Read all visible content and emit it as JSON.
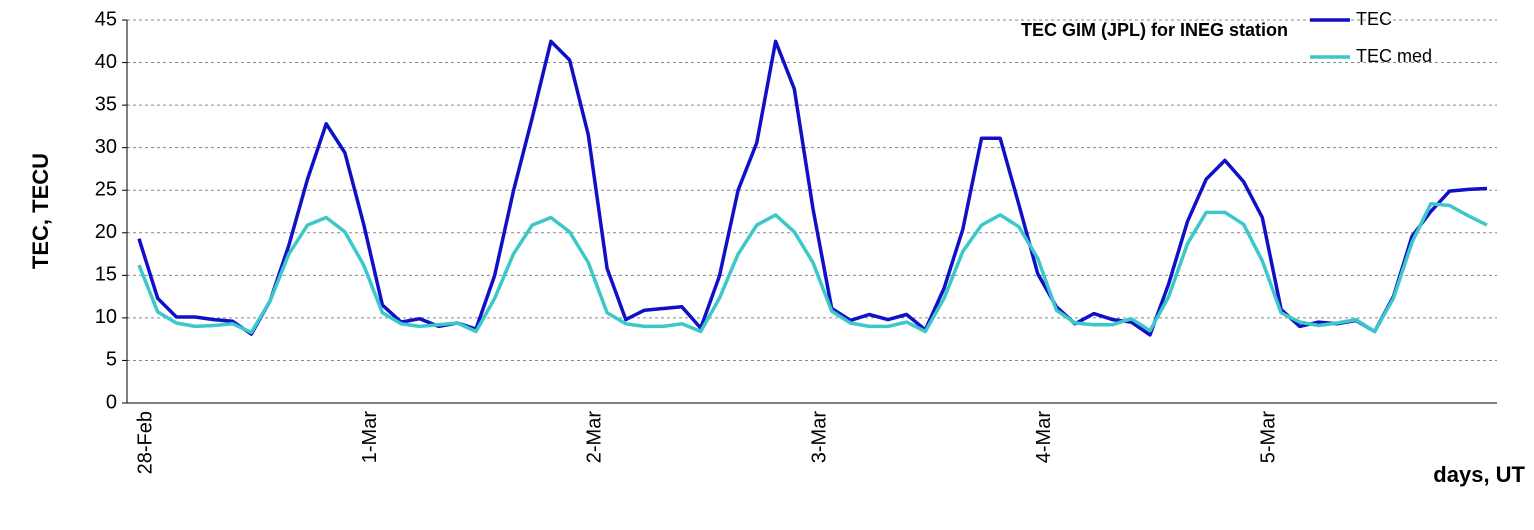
{
  "chart_data": {
    "type": "line",
    "title": "TEC GIM (JPL) for INEG station",
    "y_label": "TEC, TECU",
    "x_label": "days, UT",
    "categories": [
      "28-Feb",
      null,
      null,
      null,
      null,
      null,
      null,
      null,
      null,
      null,
      null,
      null,
      "1-Mar",
      null,
      null,
      null,
      null,
      null,
      null,
      null,
      null,
      null,
      null,
      null,
      "2-Mar",
      null,
      null,
      null,
      null,
      null,
      null,
      null,
      null,
      null,
      null,
      null,
      "3-Mar",
      null,
      null,
      null,
      null,
      null,
      null,
      null,
      null,
      null,
      null,
      null,
      "4-Mar",
      null,
      null,
      null,
      null,
      null,
      null,
      null,
      null,
      null,
      null,
      null,
      "5-Mar",
      null,
      null,
      null,
      null,
      null,
      null,
      null,
      null,
      null,
      null,
      null,
      null
    ],
    "series": [
      {
        "name": "TEC",
        "color": "#1010c8",
        "values": [
          19.3,
          12.3,
          10.1,
          10.1,
          9.8,
          9.6,
          8.1,
          12.0,
          18.5,
          26.3,
          32.8,
          29.4,
          21.0,
          11.5,
          9.5,
          9.9,
          9.0,
          9.4,
          8.7,
          15.0,
          24.9,
          33.5,
          42.5,
          40.3,
          31.5,
          15.8,
          9.8,
          10.9,
          11.1,
          11.3,
          8.8,
          14.9,
          25.0,
          30.6,
          42.5,
          36.9,
          22.8,
          11.1,
          9.7,
          10.4,
          9.8,
          10.4,
          8.6,
          13.5,
          20.4,
          31.1,
          31.1,
          23.3,
          15.2,
          11.3,
          9.3,
          10.5,
          9.8,
          9.5,
          8.0,
          14.0,
          21.3,
          26.3,
          28.5,
          26.0,
          21.8,
          11.0,
          9.0,
          9.5,
          9.3,
          9.7,
          8.4,
          12.5,
          19.6,
          22.5,
          24.9,
          25.1,
          25.2
        ]
      },
      {
        "name": "TEC med",
        "color": "#3cc8c8",
        "values": [
          16.2,
          10.7,
          9.4,
          9.0,
          9.1,
          9.3,
          8.3,
          12.0,
          17.5,
          20.9,
          21.8,
          20.1,
          16.2,
          10.6,
          9.3,
          9.0,
          9.2,
          9.4,
          8.4,
          12.3,
          17.5,
          20.9,
          21.8,
          20.1,
          16.5,
          10.6,
          9.3,
          9.0,
          9.0,
          9.3,
          8.4,
          12.3,
          17.5,
          20.9,
          22.1,
          20.1,
          16.5,
          10.8,
          9.4,
          9.0,
          9.0,
          9.5,
          8.4,
          12.3,
          17.8,
          20.9,
          22.1,
          20.7,
          17.0,
          10.9,
          9.4,
          9.2,
          9.2,
          9.9,
          8.5,
          12.5,
          18.7,
          22.4,
          22.4,
          21.0,
          16.7,
          10.6,
          9.5,
          9.1,
          9.4,
          9.8,
          8.4,
          12.3,
          18.9,
          23.4,
          23.2,
          22.0,
          20.9
        ]
      }
    ],
    "ylim": [
      0,
      45
    ],
    "yticks": [
      0,
      5,
      10,
      15,
      20,
      25,
      30,
      35,
      40,
      45
    ],
    "grid": true,
    "legend": "upper right"
  }
}
